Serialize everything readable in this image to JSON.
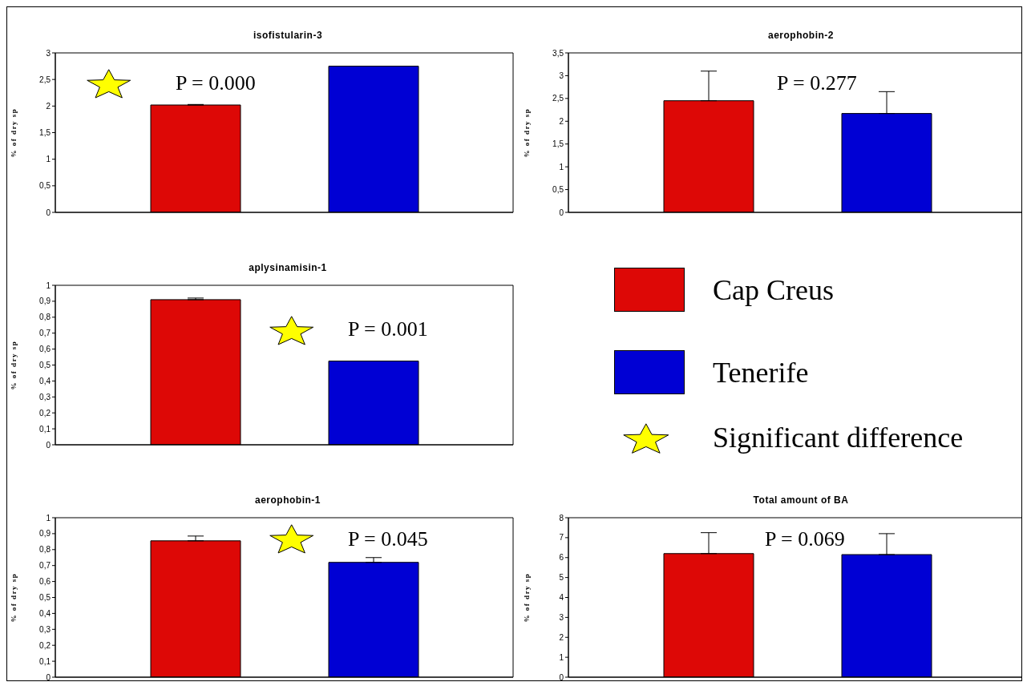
{
  "chart_data": [
    {
      "type": "bar",
      "title": "isofistularin-3",
      "ylabel": "% of dry sp",
      "categories": [
        null
      ],
      "tick_labels": "y",
      "legend": "bottom right",
      "ylim": [
        0,
        3
      ],
      "yticks": [
        0,
        {
          "value": 0.5,
          "label": "0,5"
        },
        1,
        {
          "value": 1.5,
          "label": "1,5"
        },
        2,
        {
          "value": 2.5,
          "label": "2,5"
        },
        3
      ],
      "annotations": [
        "P = 0.000",
        "Significant difference"
      ],
      "series": [
        {
          "name": "Cap Creus",
          "color": "#dd0806",
          "values": [
            2.02
          ],
          "errors": [
            [
              2.02,
              2.03
            ]
          ]
        },
        {
          "name": "Tenerife",
          "color": "#0000d4",
          "values": [
            2.75
          ]
        }
      ]
    },
    {
      "type": "bar",
      "title": "aerophobin-2",
      "ylabel": "% of dry sp",
      "categories": [
        null
      ],
      "tick_labels": "y",
      "ylim": [
        0,
        3.5
      ],
      "yticks": [
        0,
        {
          "value": 0.5,
          "label": "0,5"
        },
        1,
        {
          "value": 1.5,
          "label": "1,5"
        },
        2,
        {
          "value": 2.5,
          "label": "2,5"
        },
        3,
        {
          "value": 3.5,
          "label": "3,5"
        }
      ],
      "annotations": [
        "P = 0.277"
      ],
      "series": [
        {
          "color": "#dd0806",
          "values": [
            2.45
          ],
          "errors": [
            [
              2.45,
              3.1
            ]
          ]
        },
        {
          "color": "#0000d4",
          "values": [
            2.17
          ],
          "errors": [
            [
              2.17,
              2.65
            ]
          ]
        }
      ]
    },
    {
      "type": "bar",
      "title": "aplysinamisin-1",
      "ylabel": "% of dry sp",
      "categories": [
        null
      ],
      "tick_labels": "y",
      "ylim": [
        0,
        1
      ],
      "yticks": [
        0,
        {
          "value": 0.1,
          "label": "0,1"
        },
        {
          "value": 0.2,
          "label": "0,2"
        },
        {
          "value": 0.3,
          "label": "0,3"
        },
        {
          "value": 0.4,
          "label": "0,4"
        },
        {
          "value": 0.5,
          "label": "0,5"
        },
        {
          "value": 0.6,
          "label": "0,6"
        },
        {
          "value": 0.7,
          "label": "0,7"
        },
        {
          "value": 0.8,
          "label": "0,8"
        },
        {
          "value": 0.9,
          "label": "0,9"
        },
        1
      ],
      "annotations": [
        "P = 0.001"
      ],
      "series": [
        {
          "color": "#dd0806",
          "values": [
            0.91
          ],
          "errors": [
            [
              0.91,
              0.92
            ]
          ]
        },
        {
          "color": "#0000d4",
          "values": [
            0.525
          ]
        }
      ]
    },
    {
      "type": "bar",
      "title": "aerophobin-1",
      "ylabel": "% of dry sp",
      "categories": [
        null
      ],
      "tick_labels": "y",
      "ylim": [
        0,
        1
      ],
      "yticks": [
        0,
        {
          "value": 0.1,
          "label": "0,1"
        },
        {
          "value": 0.2,
          "label": "0,2"
        },
        {
          "value": 0.3,
          "label": "0,3"
        },
        {
          "value": 0.4,
          "label": "0,4"
        },
        {
          "value": 0.5,
          "label": "0,5"
        },
        {
          "value": 0.6,
          "label": "0,6"
        },
        {
          "value": 0.7,
          "label": "0,7"
        },
        {
          "value": 0.8,
          "label": "0,8"
        },
        {
          "value": 0.9,
          "label": "0,9"
        },
        1
      ],
      "annotations": [
        "P = 0.045"
      ],
      "series": [
        {
          "color": "#dd0806",
          "values": [
            0.855
          ],
          "errors": [
            [
              0.855,
              0.885
            ]
          ]
        },
        {
          "color": "#0000d4",
          "values": [
            0.72
          ],
          "errors": [
            [
              0.72,
              0.75
            ]
          ]
        }
      ]
    },
    {
      "type": "bar",
      "title": "Total amount of BA",
      "ylabel": "% of dry sp",
      "categories": [
        null
      ],
      "tick_labels": "y",
      "ylim": [
        0,
        8
      ],
      "yticks": [
        0,
        1,
        2,
        3,
        4,
        5,
        6,
        7,
        8
      ],
      "annotations": [
        "P = 0.069"
      ],
      "series": [
        {
          "color": "#dd0806",
          "values": [
            6.2
          ],
          "errors": [
            [
              6.2,
              7.25
            ]
          ]
        },
        {
          "color": "#0000d4",
          "values": [
            6.15
          ],
          "errors": [
            [
              6.15,
              7.2
            ]
          ]
        }
      ]
    }
  ]
}
